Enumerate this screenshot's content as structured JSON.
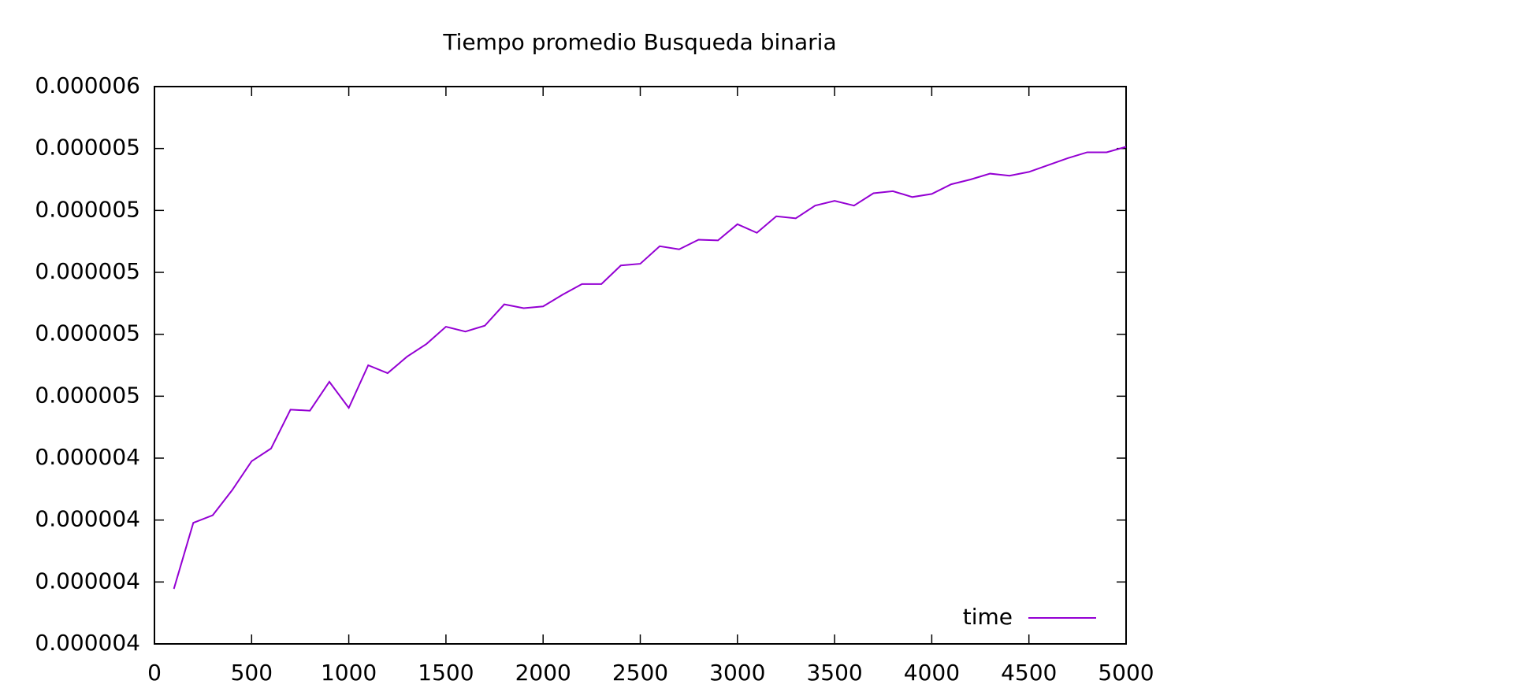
{
  "chart_data": {
    "type": "line",
    "title": "Tiempo promedio Busqueda binaria",
    "x": [
      100,
      200,
      300,
      400,
      500,
      600,
      700,
      800,
      900,
      1000,
      1100,
      1200,
      1300,
      1400,
      1500,
      1600,
      1700,
      1800,
      1900,
      2000,
      2100,
      2200,
      2300,
      2400,
      2500,
      2600,
      2700,
      2800,
      2900,
      3000,
      3100,
      3200,
      3300,
      3400,
      3500,
      3600,
      3700,
      3800,
      3900,
      4000,
      4100,
      4200,
      4300,
      4400,
      4500,
      4600,
      4700,
      4800,
      4900,
      5000
    ],
    "series": [
      {
        "name": "time",
        "color": "#9400d3",
        "values": [
          4.06e-06,
          4.252e-06,
          4.274e-06,
          4.347e-06,
          4.431e-06,
          4.468e-06,
          4.581e-06,
          4.578e-06,
          4.662e-06,
          4.586e-06,
          4.71e-06,
          4.687e-06,
          4.735e-06,
          4.772e-06,
          4.822e-06,
          4.808e-06,
          4.825e-06,
          4.887e-06,
          4.876e-06,
          4.881e-06,
          4.915e-06,
          4.946e-06,
          4.946e-06,
          5e-06,
          5.005e-06,
          5.056e-06,
          5.047e-06,
          5.075e-06,
          5.073e-06,
          5.12e-06,
          5.095e-06,
          5.143e-06,
          5.137e-06,
          5.174e-06,
          5.188e-06,
          5.174e-06,
          5.21e-06,
          5.216e-06,
          5.199e-06,
          5.208e-06,
          5.236e-06,
          5.25e-06,
          5.267e-06,
          5.261e-06,
          5.272e-06,
          5.292e-06,
          5.312e-06,
          5.329e-06,
          5.329e-06,
          5.345e-06
        ]
      }
    ],
    "xlim": [
      0,
      5000
    ],
    "xticks": [
      0,
      500,
      1000,
      1500,
      2000,
      2500,
      3000,
      3500,
      4000,
      4500,
      5000
    ],
    "ylim": [
      3.9e-06,
      5.52e-06
    ],
    "yticks": [
      {
        "value": 3.9e-06,
        "label": "0.000004"
      },
      {
        "value": 4.08e-06,
        "label": "0.000004"
      },
      {
        "value": 4.26e-06,
        "label": "0.000004"
      },
      {
        "value": 4.44e-06,
        "label": "0.000004"
      },
      {
        "value": 4.62e-06,
        "label": "0.000005"
      },
      {
        "value": 4.8e-06,
        "label": "0.000005"
      },
      {
        "value": 4.98e-06,
        "label": "0.000005"
      },
      {
        "value": 5.16e-06,
        "label": "0.000005"
      },
      {
        "value": 5.34e-06,
        "label": "0.000005"
      },
      {
        "value": 5.52e-06,
        "label": "0.000006"
      }
    ],
    "legend": "bottom-right",
    "grid": false
  }
}
